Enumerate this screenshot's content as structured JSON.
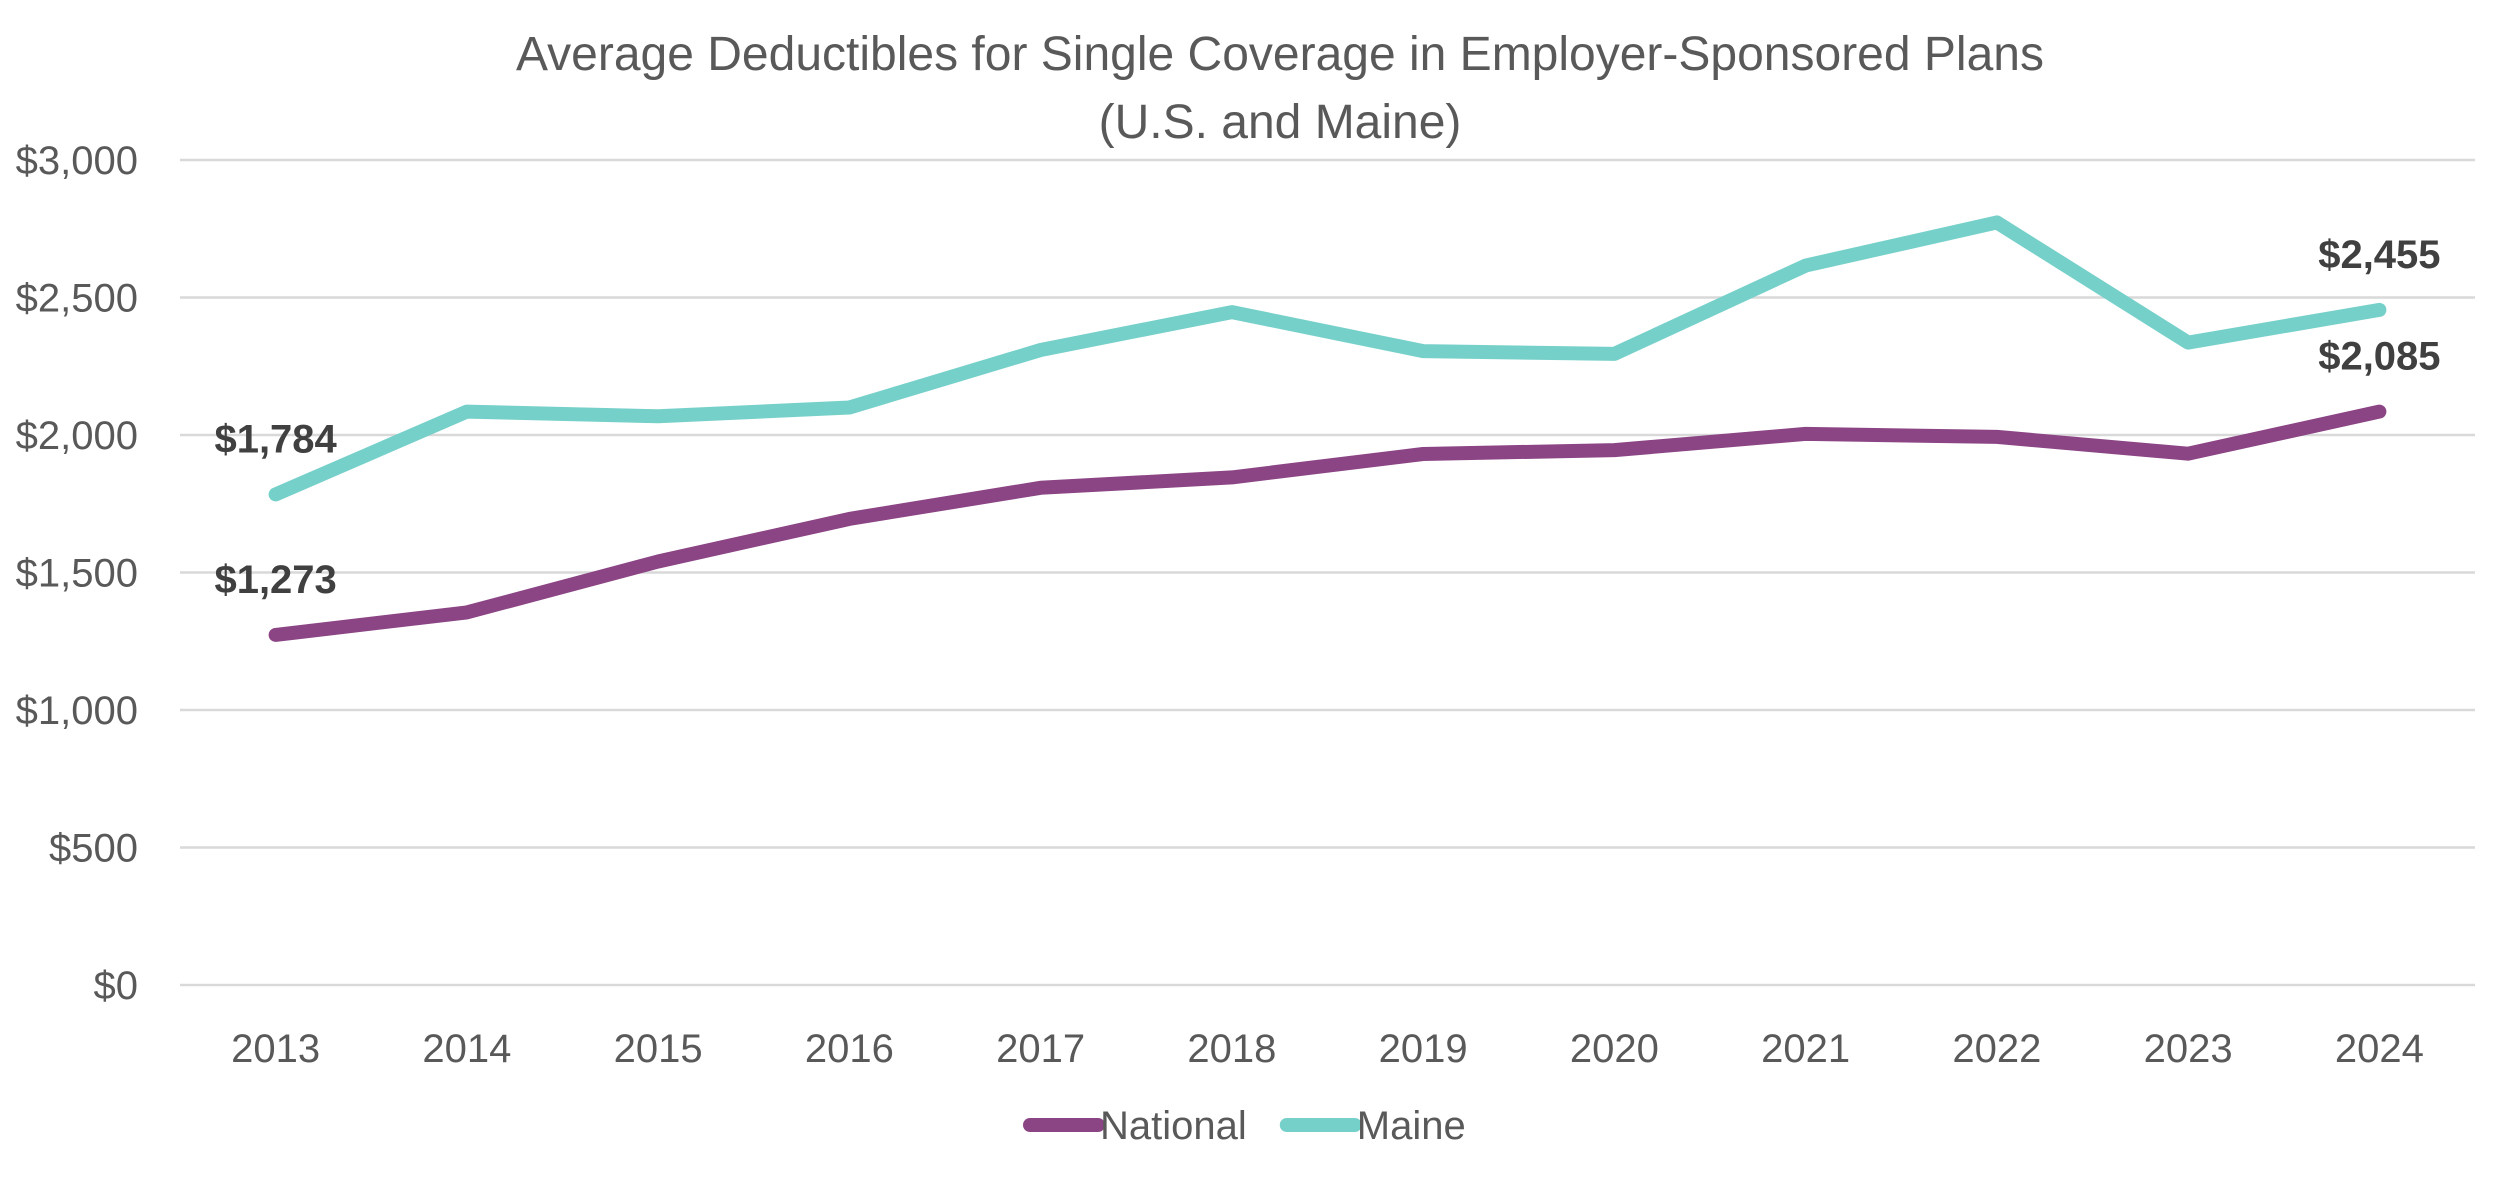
{
  "chart_data": {
    "type": "line",
    "title": "Average Deductibles for Single Coverage in Employer-Sponsored Plans",
    "subtitle": "(U.S. and Maine)",
    "xlabel": "",
    "ylabel": "",
    "ylim": [
      0,
      3000
    ],
    "ytick_step": 500,
    "ytick_labels": [
      "$0",
      "$500",
      "$1,000",
      "$1,500",
      "$2,000",
      "$2,500",
      "$3,000"
    ],
    "grid": true,
    "legend_position": "bottom",
    "categories": [
      "2013",
      "2014",
      "2015",
      "2016",
      "2017",
      "2018",
      "2019",
      "2020",
      "2021",
      "2022",
      "2023",
      "2024"
    ],
    "series": [
      {
        "name": "National",
        "color": "#8b4484",
        "values": [
          1273,
          1355,
          1540,
          1695,
          1808,
          1846,
          1931,
          1945,
          2004,
          1993,
          1932,
          2085
        ],
        "labels": [
          {
            "index": 0,
            "text": "$1,273"
          },
          {
            "index": 11,
            "text": "$2,085"
          }
        ]
      },
      {
        "name": "Maine",
        "color": "#76d0ca",
        "values": [
          1784,
          2085,
          2068,
          2100,
          2309,
          2447,
          2305,
          2295,
          2616,
          2773,
          2336,
          2455
        ],
        "labels": [
          {
            "index": 0,
            "text": "$1,784"
          },
          {
            "index": 11,
            "text": "$2,455"
          }
        ]
      }
    ]
  }
}
